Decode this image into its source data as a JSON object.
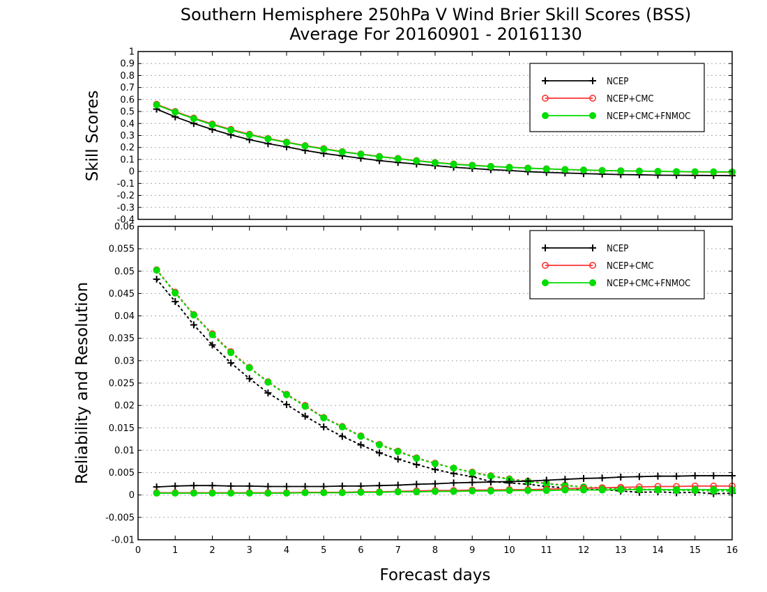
{
  "title": {
    "line1": "Southern Hemisphere 250hPa V Wind Brier Skill Scores (BSS)",
    "line2": "Average For 20160901 - 20161130"
  },
  "xlabel": "Forecast days",
  "colors": {
    "NCEP": "#000000",
    "NCEP+CMC": "#ff3333",
    "NCEP+CMC+FNMOC": "#00dd00"
  },
  "chart_data": [
    {
      "type": "line",
      "ylabel": "Skill Scores",
      "xlim": [
        0,
        16
      ],
      "ylim": [
        -0.4,
        1
      ],
      "xticks": [
        "0",
        "1",
        "2",
        "3",
        "4",
        "5",
        "6",
        "7",
        "8",
        "9",
        "10",
        "11",
        "12",
        "13",
        "14",
        "15",
        "16"
      ],
      "yticks": [
        "-0.4",
        "-0.3",
        "-0.2",
        "-0.1",
        "0",
        "0.1",
        "0.2",
        "0.3",
        "0.4",
        "0.5",
        "0.6",
        "0.7",
        "0.8",
        "0.9",
        "1"
      ],
      "grid": "horizontal dotted",
      "legend_position": "top-right",
      "x": [
        0.5,
        1,
        1.5,
        2,
        2.5,
        3,
        3.5,
        4,
        4.5,
        5,
        5.5,
        6,
        6.5,
        7,
        7.5,
        8,
        8.5,
        9,
        9.5,
        10,
        10.5,
        11,
        11.5,
        12,
        12.5,
        13,
        13.5,
        14,
        14.5,
        15,
        15.5,
        16
      ],
      "series": [
        {
          "name": "NCEP",
          "marker": "plus",
          "line": "solid",
          "values": [
            0.52,
            0.455,
            0.4,
            0.35,
            0.305,
            0.265,
            0.232,
            0.205,
            0.175,
            0.15,
            0.13,
            0.11,
            0.09,
            0.075,
            0.062,
            0.048,
            0.035,
            0.025,
            0.015,
            0.008,
            -0.002,
            -0.008,
            -0.013,
            -0.018,
            -0.022,
            -0.026,
            -0.028,
            -0.031,
            -0.032,
            -0.033,
            -0.034,
            -0.035
          ]
        },
        {
          "name": "NCEP+CMC",
          "marker": "open-circle",
          "line": "solid",
          "values": [
            0.56,
            0.5,
            0.445,
            0.395,
            0.35,
            0.31,
            0.275,
            0.245,
            0.215,
            0.19,
            0.165,
            0.145,
            0.125,
            0.108,
            0.09,
            0.075,
            0.062,
            0.052,
            0.042,
            0.035,
            0.028,
            0.022,
            0.016,
            0.012,
            0.008,
            0.005,
            0.003,
            0.0,
            -0.002,
            -0.004,
            -0.005,
            -0.006
          ]
        },
        {
          "name": "NCEP+CMC+FNMOC",
          "marker": "filled-circle",
          "line": "solid",
          "values": [
            0.555,
            0.495,
            0.44,
            0.39,
            0.345,
            0.305,
            0.272,
            0.242,
            0.212,
            0.187,
            0.163,
            0.143,
            0.123,
            0.106,
            0.088,
            0.073,
            0.06,
            0.05,
            0.041,
            0.034,
            0.027,
            0.021,
            0.016,
            0.012,
            0.008,
            0.005,
            0.003,
            0.001,
            -0.001,
            -0.002,
            -0.003,
            -0.004
          ]
        }
      ]
    },
    {
      "type": "line",
      "ylabel": "Reliability and Resolution",
      "xlim": [
        0,
        16
      ],
      "ylim": [
        -0.01,
        0.06
      ],
      "xticks": [
        "0",
        "1",
        "2",
        "3",
        "4",
        "5",
        "6",
        "7",
        "8",
        "9",
        "10",
        "11",
        "12",
        "13",
        "14",
        "15",
        "16"
      ],
      "yticks": [
        "-0.01",
        "-0.005",
        "0",
        "0.005",
        "0.01",
        "0.015",
        "0.02",
        "0.025",
        "0.03",
        "0.035",
        "0.04",
        "0.045",
        "0.05",
        "0.055",
        "0.06"
      ],
      "grid": "horizontal dotted",
      "legend_position": "top-right",
      "x": [
        0.5,
        1,
        1.5,
        2,
        2.5,
        3,
        3.5,
        4,
        4.5,
        5,
        5.5,
        6,
        6.5,
        7,
        7.5,
        8,
        8.5,
        9,
        9.5,
        10,
        10.5,
        11,
        11.5,
        12,
        12.5,
        13,
        13.5,
        14,
        14.5,
        15,
        15.5,
        16
      ],
      "series": [
        {
          "name": "NCEP",
          "group": "resolution",
          "marker": "plus",
          "line": "dotted",
          "values": [
            0.0482,
            0.0432,
            0.038,
            0.0335,
            0.0295,
            0.026,
            0.0228,
            0.0202,
            0.0176,
            0.0152,
            0.0131,
            0.0112,
            0.0094,
            0.008,
            0.0068,
            0.0057,
            0.0048,
            0.0041,
            0.003,
            0.0027,
            0.0024,
            0.0019,
            0.0016,
            0.0012,
            0.0012,
            0.0009,
            0.0006,
            0.0007,
            0.0005,
            0.0006,
            0.0003,
            0.0004
          ]
        },
        {
          "name": "NCEP+CMC",
          "group": "resolution",
          "marker": "open-circle",
          "line": "dotted",
          "values": [
            0.0503,
            0.0453,
            0.0403,
            0.036,
            0.032,
            0.0285,
            0.0253,
            0.0225,
            0.02,
            0.0173,
            0.0153,
            0.0132,
            0.0113,
            0.0098,
            0.0083,
            0.0071,
            0.006,
            0.0051,
            0.0043,
            0.0036,
            0.0031,
            0.0026,
            0.0022,
            0.0018,
            0.0016,
            0.0014,
            0.0013,
            0.0012,
            0.0011,
            0.001,
            0.001,
            0.001
          ]
        },
        {
          "name": "NCEP+CMC+FNMOC",
          "group": "resolution",
          "marker": "filled-circle",
          "line": "dotted",
          "values": [
            0.0502,
            0.0451,
            0.0402,
            0.0358,
            0.0318,
            0.0284,
            0.0252,
            0.0224,
            0.0198,
            0.0172,
            0.0152,
            0.0131,
            0.0112,
            0.0097,
            0.0082,
            0.007,
            0.006,
            0.005,
            0.0042,
            0.0035,
            0.003,
            0.0025,
            0.0021,
            0.0018,
            0.0015,
            0.0013,
            0.0012,
            0.0011,
            0.001,
            0.001,
            0.0009,
            0.0009
          ]
        },
        {
          "name": "NCEP",
          "group": "reliability",
          "marker": "plus",
          "line": "solid",
          "values": [
            0.0018,
            0.002,
            0.0021,
            0.0021,
            0.002,
            0.002,
            0.0019,
            0.0019,
            0.0019,
            0.0019,
            0.002,
            0.002,
            0.0021,
            0.0022,
            0.0024,
            0.0025,
            0.0027,
            0.0028,
            0.0029,
            0.003,
            0.0031,
            0.0033,
            0.0035,
            0.0037,
            0.0038,
            0.004,
            0.0041,
            0.0042,
            0.0042,
            0.0043,
            0.0043,
            0.0043
          ]
        },
        {
          "name": "NCEP+CMC",
          "group": "reliability",
          "marker": "open-circle",
          "line": "solid",
          "values": [
            0.0005,
            0.0005,
            0.0005,
            0.0005,
            0.0005,
            0.0005,
            0.0005,
            0.0005,
            0.0006,
            0.0006,
            0.0006,
            0.0007,
            0.0007,
            0.0008,
            0.0009,
            0.001,
            0.001,
            0.0011,
            0.0011,
            0.0012,
            0.0012,
            0.0013,
            0.0014,
            0.0015,
            0.0016,
            0.0017,
            0.0018,
            0.0019,
            0.0019,
            0.002,
            0.002,
            0.002
          ]
        },
        {
          "name": "NCEP+CMC+FNMOC",
          "group": "reliability",
          "marker": "filled-circle",
          "line": "solid",
          "values": [
            0.0004,
            0.0004,
            0.0004,
            0.0004,
            0.0004,
            0.0004,
            0.0004,
            0.0004,
            0.0005,
            0.0005,
            0.0005,
            0.0006,
            0.0006,
            0.0007,
            0.0007,
            0.0008,
            0.0008,
            0.0009,
            0.0009,
            0.001,
            0.001,
            0.001,
            0.0011,
            0.0011,
            0.0011,
            0.0012,
            0.0012,
            0.0012,
            0.0012,
            0.0012,
            0.0012,
            0.0012
          ]
        }
      ]
    }
  ]
}
